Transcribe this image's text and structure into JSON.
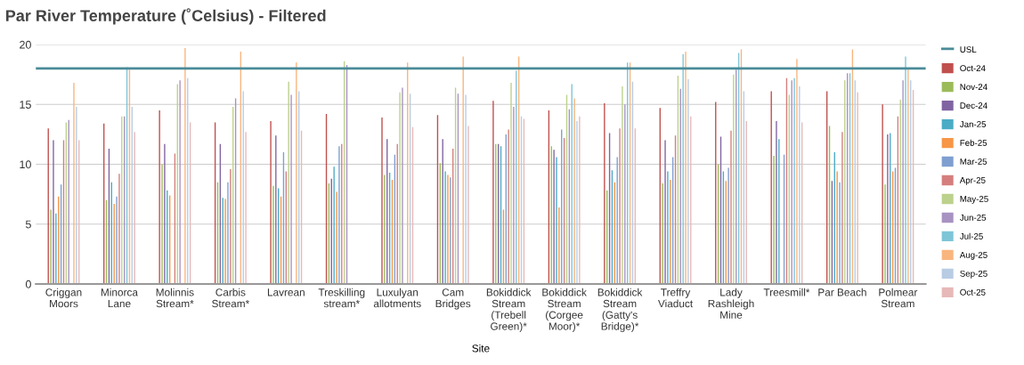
{
  "chart_data": {
    "type": "bar",
    "title": "Par River Temperature (˚Celsius) - Filtered",
    "xlabel": "Site",
    "categories": [
      "Criggan\nMoors",
      "Minorca\nLane",
      "Molinnis\nStream*",
      "Carbis\nStream*",
      "Lavrean",
      "Treskilling\nstream*",
      "Luxulyan\nallotments",
      "Cam\nBridges",
      "Bokiddick\nStream\n(Trebell\nGreen)*",
      "Bokiddick\nStream\n(Corgee\nMoor)*",
      "Bokiddick\nStream\n(Gatty's\nBridge)*",
      "Treffry\nViaduct",
      "Lady\nRashleigh\nMine",
      "Treesmill*",
      "Par Beach",
      "Polmear\nStream"
    ],
    "series": [
      {
        "name": "Oct-24",
        "color": "#c0504d",
        "values": [
          13.0,
          13.4,
          14.5,
          13.5,
          13.6,
          14.2,
          13.9,
          14.1,
          15.3,
          14.5,
          15.1,
          14.7,
          15.2,
          16.1,
          16.1,
          15.0
        ]
      },
      {
        "name": "Nov-24",
        "color": "#9bbb59",
        "values": [
          6.2,
          7.0,
          10.0,
          8.5,
          8.2,
          8.4,
          9.1,
          10.1,
          11.7,
          11.5,
          7.8,
          8.4,
          10.0,
          10.7,
          13.2,
          8.3
        ]
      },
      {
        "name": "Dec-24",
        "color": "#8064a2",
        "values": [
          12.0,
          11.3,
          11.7,
          11.7,
          12.4,
          8.8,
          12.1,
          12.1,
          11.7,
          11.2,
          12.6,
          12.0,
          12.3,
          13.6,
          8.6,
          12.5
        ]
      },
      {
        "name": "Jan-25",
        "color": "#4bacc6",
        "values": [
          5.9,
          8.5,
          7.8,
          7.2,
          8.0,
          9.8,
          9.3,
          9.4,
          11.5,
          10.6,
          9.5,
          9.4,
          9.4,
          12.1,
          11.0,
          12.6
        ]
      },
      {
        "name": "Feb-25",
        "color": "#f79646",
        "values": [
          7.3,
          6.7,
          7.4,
          7.1,
          7.3,
          7.7,
          8.7,
          9.1,
          6.2,
          6.4,
          8.5,
          8.7,
          8.6,
          null,
          9.4,
          9.4
        ]
      },
      {
        "name": "Mar-25",
        "color": "#7f9fd0",
        "values": [
          8.3,
          7.3,
          null,
          8.5,
          11.0,
          11.5,
          10.8,
          8.9,
          12.5,
          12.9,
          10.6,
          10.6,
          9.7,
          10.8,
          8.5,
          9.7
        ]
      },
      {
        "name": "Apr-25",
        "color": "#d47f7d",
        "values": [
          12.0,
          9.2,
          10.9,
          9.6,
          9.4,
          11.7,
          11.7,
          11.3,
          12.9,
          12.2,
          13.0,
          12.4,
          12.8,
          17.2,
          12.7,
          14.0
        ]
      },
      {
        "name": "May-25",
        "color": "#bcd18c",
        "values": [
          13.5,
          14.0,
          16.7,
          14.8,
          16.9,
          18.6,
          16.0,
          16.4,
          16.8,
          15.8,
          16.5,
          17.4,
          17.5,
          15.8,
          17.0,
          15.4
        ]
      },
      {
        "name": "Jun-25",
        "color": "#a892c2",
        "values": [
          13.7,
          14.0,
          17.0,
          15.5,
          15.8,
          18.3,
          16.4,
          15.9,
          14.8,
          14.6,
          15.0,
          16.3,
          17.9,
          17.0,
          17.6,
          17.0
        ]
      },
      {
        "name": "Jul-25",
        "color": "#7ec5d8",
        "values": [
          null,
          18.1,
          null,
          null,
          null,
          null,
          null,
          null,
          17.8,
          16.7,
          18.5,
          19.2,
          19.3,
          17.2,
          17.6,
          19.0
        ]
      },
      {
        "name": "Aug-25",
        "color": "#f9b57e",
        "values": [
          16.8,
          17.9,
          19.7,
          19.4,
          18.5,
          null,
          18.5,
          19.0,
          19.0,
          15.5,
          18.5,
          19.4,
          19.6,
          18.8,
          19.6,
          17.9
        ]
      },
      {
        "name": "Sep-25",
        "color": "#b8cce4",
        "values": [
          14.8,
          14.8,
          17.2,
          16.1,
          16.1,
          null,
          15.9,
          15.8,
          14.0,
          13.6,
          16.9,
          17.1,
          16.1,
          16.5,
          17.0,
          17.0
        ]
      },
      {
        "name": "Oct-25",
        "color": "#e6b9b8",
        "values": [
          12.0,
          12.7,
          13.5,
          12.7,
          12.8,
          null,
          13.1,
          13.2,
          13.8,
          14.0,
          13.0,
          14.0,
          13.6,
          13.5,
          16.0,
          16.2
        ]
      }
    ],
    "ref_lines": [
      {
        "axis": "y",
        "value": 18,
        "label": "USL",
        "color": "#4a8b99"
      }
    ],
    "ylim": [
      0,
      20
    ],
    "yticks": [
      0,
      5,
      10,
      15,
      20
    ],
    "grid": "y",
    "legend": "right"
  }
}
